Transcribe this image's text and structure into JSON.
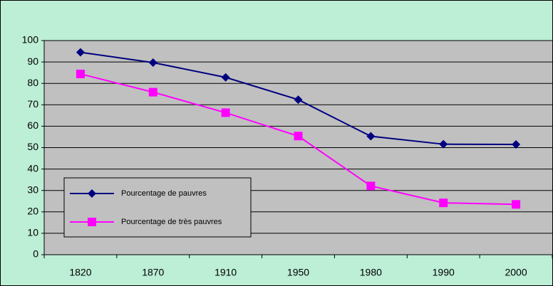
{
  "chart_data": {
    "type": "line",
    "categories": [
      "1820",
      "1870",
      "1910",
      "1950",
      "1980",
      "1990",
      "2000"
    ],
    "series": [
      {
        "name": "Pourcentage de pauvres",
        "color": "#000080",
        "marker": "diamond",
        "values": [
          94.5,
          89.7,
          82.8,
          72.4,
          55.3,
          51.6,
          51.5
        ]
      },
      {
        "name": "Pourcentage de très pauvres",
        "color": "#ff00ff",
        "marker": "square",
        "values": [
          84.4,
          75.9,
          66.3,
          55.4,
          32.1,
          24.2,
          23.5
        ]
      }
    ],
    "ylim": [
      0,
      100
    ],
    "yticks": [
      0,
      10,
      20,
      30,
      40,
      50,
      60,
      70,
      80,
      90,
      100
    ],
    "grid": true,
    "legend": "lower left"
  }
}
